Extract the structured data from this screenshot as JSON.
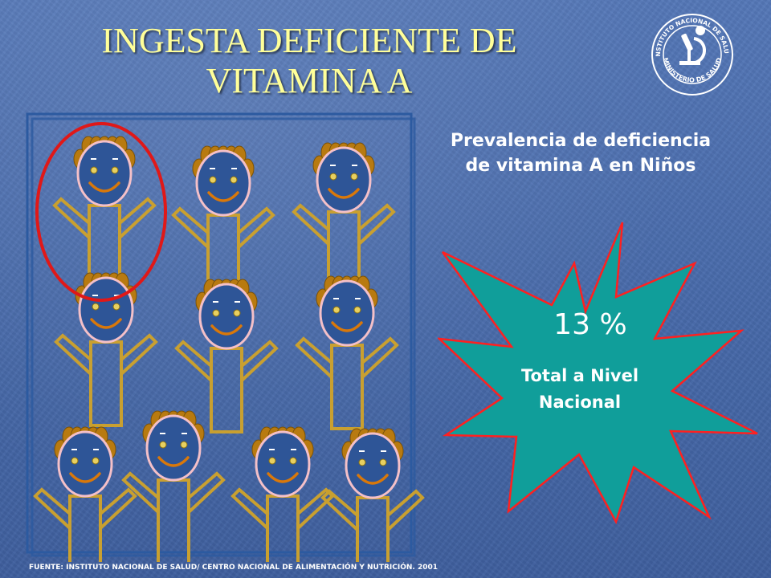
{
  "slide": {
    "title": "INGESTA DEFICIENTE DE VITAMINA A",
    "subtitle": "Prevalencia de deficiencia de vitamina A en Niños",
    "stat_value": "13 %",
    "stat_label": "Total a Nivel Nacional",
    "source": "FUENTE: INSTITUTO NACIONAL DE SALUD/ CENTRO NACIONAL DE ALIMENTACIÓN Y NUTRICIÓN. 2001",
    "logo_text": "MINISTERIO DE SALUD",
    "logo_ring_text": "INSTITUTO NACIONAL DE SALUD"
  },
  "figure": {
    "children_count": 10,
    "highlighted_count": 1
  },
  "colors": {
    "title": "#ffff99",
    "background": "#4a6fb0",
    "star_fill": "#109e9a",
    "star_stroke": "#ff2020",
    "highlight_circle": "#e01818",
    "face_fill": "#2e5597",
    "face_outline": "#f4c0c8",
    "hair": "#b87a10",
    "body_stroke": "#c9a030",
    "frame": "#2c5aa0"
  }
}
